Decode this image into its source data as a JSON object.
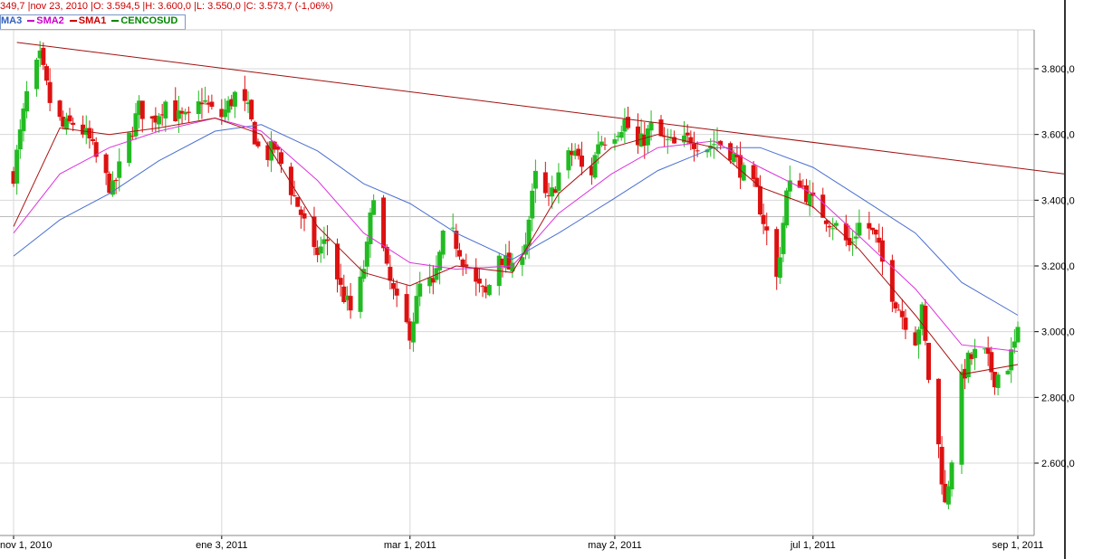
{
  "info_bar": {
    "text": "349,7 |nov 23, 2010 |O: 3.594,5 |H: 3.600,0 |L: 3.550,0 |C: 3.573,7 (-1,06%)"
  },
  "legend": {
    "items": [
      {
        "label": "MA3",
        "color": "#3060c0"
      },
      {
        "label": "SMA2",
        "color": "#cc00cc"
      },
      {
        "label": "SMA1",
        "color": "#cc0000"
      },
      {
        "label": "CENCOSUD",
        "color": "#008800"
      }
    ]
  },
  "chart_data": {
    "type": "candlestick",
    "title": "",
    "symbol": "CENCOSUD",
    "xlabel": "",
    "ylabel": "",
    "x_range": [
      "2010-11-01",
      "2011-09-01"
    ],
    "ylim": [
      2400,
      3950
    ],
    "y_ticks": [
      {
        "value": 2600,
        "label": "2.600,0"
      },
      {
        "value": 2800,
        "label": "2.800,0"
      },
      {
        "value": 3000,
        "label": "3.000,0"
      },
      {
        "value": 3200,
        "label": "3.200,0"
      },
      {
        "value": 3400,
        "label": "3.400,0"
      },
      {
        "value": 3600,
        "label": "3.600,0"
      },
      {
        "value": 3800,
        "label": "3.800,0"
      }
    ],
    "x_ticks": [
      {
        "date": "2010-11-01",
        "label": "nov 1, 2010"
      },
      {
        "date": "2011-01-03",
        "label": "ene 3, 2011"
      },
      {
        "date": "2011-03-01",
        "label": "mar 1, 2011"
      },
      {
        "date": "2011-05-02",
        "label": "may 2, 2011"
      },
      {
        "date": "2011-07-01",
        "label": "jul 1, 2011"
      },
      {
        "date": "2011-09-01",
        "label": "sep 1, 2011"
      }
    ],
    "grid": true,
    "up_color": "#22bb22",
    "down_color": "#dd1111",
    "close_path": [
      [
        "2010-11-01",
        3480
      ],
      [
        "2010-11-05",
        3720
      ],
      [
        "2010-11-09",
        3830
      ],
      [
        "2010-11-12",
        3700
      ],
      [
        "2010-11-16",
        3620
      ],
      [
        "2010-11-20",
        3640
      ],
      [
        "2010-11-24",
        3580
      ],
      [
        "2010-11-27",
        3500
      ],
      [
        "2010-12-01",
        3430
      ],
      [
        "2010-12-05",
        3560
      ],
      [
        "2010-12-09",
        3680
      ],
      [
        "2010-12-13",
        3640
      ],
      [
        "2010-12-17",
        3700
      ],
      [
        "2010-12-21",
        3650
      ],
      [
        "2010-12-25",
        3640
      ],
      [
        "2010-12-28",
        3710
      ],
      [
        "2011-01-02",
        3640
      ],
      [
        "2011-01-07",
        3720
      ],
      [
        "2011-01-11",
        3670
      ],
      [
        "2011-01-15",
        3520
      ],
      [
        "2011-01-19",
        3560
      ],
      [
        "2011-01-23",
        3460
      ],
      [
        "2011-01-27",
        3360
      ],
      [
        "2011-01-31",
        3230
      ],
      [
        "2011-02-04",
        3280
      ],
      [
        "2011-02-08",
        3130
      ],
      [
        "2011-02-12",
        3040
      ],
      [
        "2011-02-16",
        3250
      ],
      [
        "2011-02-18",
        3430
      ],
      [
        "2011-02-22",
        3180
      ],
      [
        "2011-02-26",
        3050
      ],
      [
        "2011-03-01",
        3000
      ],
      [
        "2011-03-05",
        3180
      ],
      [
        "2011-03-08",
        3130
      ],
      [
        "2011-03-12",
        3330
      ],
      [
        "2011-03-16",
        3250
      ],
      [
        "2011-03-20",
        3150
      ],
      [
        "2011-03-24",
        3110
      ],
      [
        "2011-03-28",
        3240
      ],
      [
        "2011-04-01",
        3180
      ],
      [
        "2011-04-05",
        3280
      ],
      [
        "2011-04-08",
        3470
      ],
      [
        "2011-04-12",
        3390
      ],
      [
        "2011-04-16",
        3510
      ],
      [
        "2011-04-20",
        3550
      ],
      [
        "2011-04-24",
        3440
      ],
      [
        "2011-04-27",
        3580
      ],
      [
        "2011-05-01",
        3600
      ],
      [
        "2011-05-05",
        3640
      ],
      [
        "2011-05-09",
        3560
      ],
      [
        "2011-05-13",
        3620
      ],
      [
        "2011-05-17",
        3580
      ],
      [
        "2011-05-21",
        3560
      ],
      [
        "2011-05-25",
        3590
      ],
      [
        "2011-05-29",
        3560
      ],
      [
        "2011-06-02",
        3580
      ],
      [
        "2011-06-06",
        3550
      ],
      [
        "2011-06-10",
        3480
      ],
      [
        "2011-06-14",
        3420
      ],
      [
        "2011-06-18",
        3260
      ],
      [
        "2011-06-20",
        3160
      ],
      [
        "2011-06-23",
        3420
      ],
      [
        "2011-06-26",
        3480
      ],
      [
        "2011-06-30",
        3400
      ],
      [
        "2011-07-04",
        3360
      ],
      [
        "2011-07-08",
        3320
      ],
      [
        "2011-07-12",
        3260
      ],
      [
        "2011-07-16",
        3350
      ],
      [
        "2011-07-20",
        3280
      ],
      [
        "2011-07-24",
        3140
      ],
      [
        "2011-07-28",
        3050
      ],
      [
        "2011-08-01",
        2980
      ],
      [
        "2011-08-03",
        3060
      ],
      [
        "2011-08-06",
        2760
      ],
      [
        "2011-08-08",
        2650
      ],
      [
        "2011-08-10",
        2470
      ],
      [
        "2011-08-12",
        2620
      ],
      [
        "2011-08-14",
        2820
      ],
      [
        "2011-08-17",
        2910
      ],
      [
        "2011-08-21",
        2950
      ],
      [
        "2011-08-25",
        2860
      ],
      [
        "2011-08-29",
        2900
      ],
      [
        "2011-09-01",
        2990
      ]
    ],
    "series": [
      {
        "name": "MA3",
        "color": "#4a6fd0",
        "values": [
          [
            "2010-11-01",
            3230
          ],
          [
            "2010-11-15",
            3340
          ],
          [
            "2010-11-30",
            3420
          ],
          [
            "2010-12-15",
            3520
          ],
          [
            "2011-01-01",
            3610
          ],
          [
            "2011-01-15",
            3630
          ],
          [
            "2011-02-01",
            3550
          ],
          [
            "2011-02-15",
            3450
          ],
          [
            "2011-03-01",
            3390
          ],
          [
            "2011-03-15",
            3300
          ],
          [
            "2011-04-01",
            3220
          ],
          [
            "2011-04-15",
            3300
          ],
          [
            "2011-05-01",
            3400
          ],
          [
            "2011-05-15",
            3490
          ],
          [
            "2011-06-01",
            3560
          ],
          [
            "2011-06-15",
            3560
          ],
          [
            "2011-07-01",
            3500
          ],
          [
            "2011-07-15",
            3410
          ],
          [
            "2011-08-01",
            3300
          ],
          [
            "2011-08-15",
            3150
          ],
          [
            "2011-09-01",
            3050
          ]
        ]
      },
      {
        "name": "SMA2",
        "color": "#dd33dd",
        "values": [
          [
            "2010-11-01",
            3300
          ],
          [
            "2010-11-15",
            3480
          ],
          [
            "2010-11-30",
            3560
          ],
          [
            "2010-12-15",
            3610
          ],
          [
            "2011-01-01",
            3650
          ],
          [
            "2011-01-15",
            3610
          ],
          [
            "2011-02-01",
            3460
          ],
          [
            "2011-02-15",
            3300
          ],
          [
            "2011-03-01",
            3210
          ],
          [
            "2011-03-15",
            3190
          ],
          [
            "2011-04-01",
            3200
          ],
          [
            "2011-04-15",
            3360
          ],
          [
            "2011-05-01",
            3480
          ],
          [
            "2011-05-15",
            3560
          ],
          [
            "2011-06-01",
            3580
          ],
          [
            "2011-06-15",
            3500
          ],
          [
            "2011-07-01",
            3420
          ],
          [
            "2011-07-15",
            3290
          ],
          [
            "2011-08-01",
            3130
          ],
          [
            "2011-08-15",
            2960
          ],
          [
            "2011-09-01",
            2940
          ]
        ]
      },
      {
        "name": "SMA1",
        "color": "#aa1111",
        "values": [
          [
            "2010-11-01",
            3320
          ],
          [
            "2010-11-15",
            3620
          ],
          [
            "2010-11-30",
            3600
          ],
          [
            "2010-12-15",
            3620
          ],
          [
            "2011-01-01",
            3650
          ],
          [
            "2011-01-15",
            3600
          ],
          [
            "2011-02-01",
            3320
          ],
          [
            "2011-02-15",
            3180
          ],
          [
            "2011-03-01",
            3140
          ],
          [
            "2011-03-15",
            3200
          ],
          [
            "2011-04-01",
            3180
          ],
          [
            "2011-04-15",
            3420
          ],
          [
            "2011-05-01",
            3560
          ],
          [
            "2011-05-15",
            3600
          ],
          [
            "2011-06-01",
            3560
          ],
          [
            "2011-06-15",
            3440
          ],
          [
            "2011-07-01",
            3380
          ],
          [
            "2011-07-15",
            3250
          ],
          [
            "2011-08-01",
            3050
          ],
          [
            "2011-08-15",
            2870
          ],
          [
            "2011-09-01",
            2900
          ]
        ]
      }
    ],
    "trendline": {
      "color": "#a01010",
      "start": [
        "2010-11-02",
        3880
      ],
      "end": [
        "2011-09-15",
        3480
      ]
    }
  }
}
